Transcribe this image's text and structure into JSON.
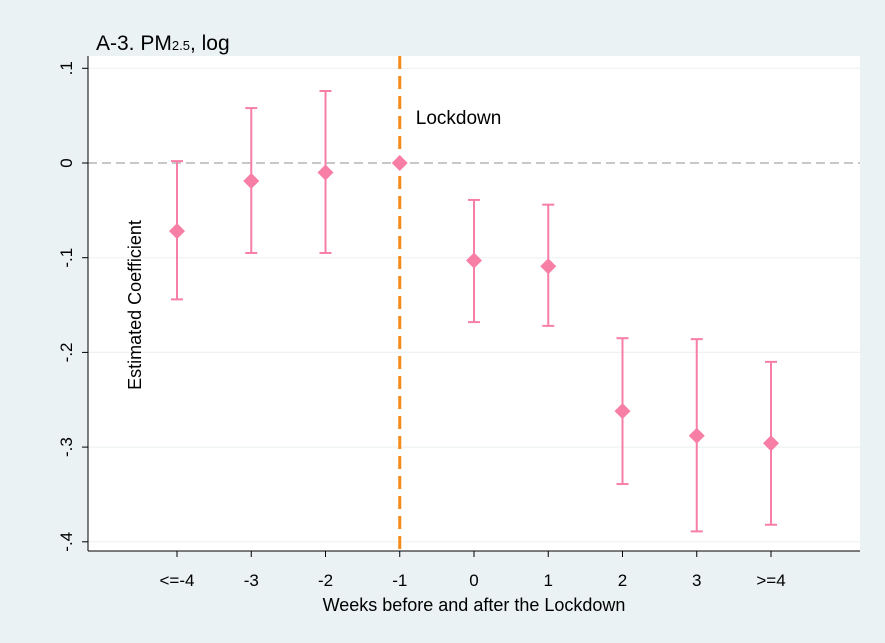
{
  "chart_data": {
    "type": "scatter",
    "title_parts": {
      "prefix": "A-3. PM",
      "subscript": "2.5",
      "suffix": ", log"
    },
    "xlabel": "Weeks before and after the Lockdown",
    "ylabel": "Estimated Coefficient",
    "categories": [
      "<=-4",
      "-3",
      "-2",
      "-1",
      "0",
      "1",
      "2",
      "3",
      ">=4"
    ],
    "ylim": [
      -0.41,
      0.11
    ],
    "yticks": [
      0.1,
      0,
      -0.1,
      -0.2,
      -0.3,
      -0.4
    ],
    "ytick_labels": [
      ".1",
      "0",
      "-.1",
      "-.2",
      "-.3",
      "-.4"
    ],
    "series": [
      {
        "values": [
          -0.072,
          -0.019,
          -0.01,
          0.0,
          -0.103,
          -0.109,
          -0.262,
          -0.288,
          -0.296
        ],
        "ci_low": [
          -0.144,
          -0.095,
          -0.095,
          0.0,
          -0.168,
          -0.172,
          -0.339,
          -0.389,
          -0.382
        ],
        "ci_high": [
          0.002,
          0.058,
          0.076,
          0.0,
          -0.039,
          -0.044,
          -0.185,
          -0.186,
          -0.21
        ]
      }
    ],
    "reference_line_y": 0,
    "vertical_line": {
      "category": "-1",
      "label": "Lockdown"
    },
    "grid": true,
    "colors": {
      "marker": "#f77fa6",
      "errorbar": "#f77fa6",
      "vline": "#f58a18",
      "zero_line": "#b5b5b5",
      "grid": "#eef2f4"
    }
  }
}
